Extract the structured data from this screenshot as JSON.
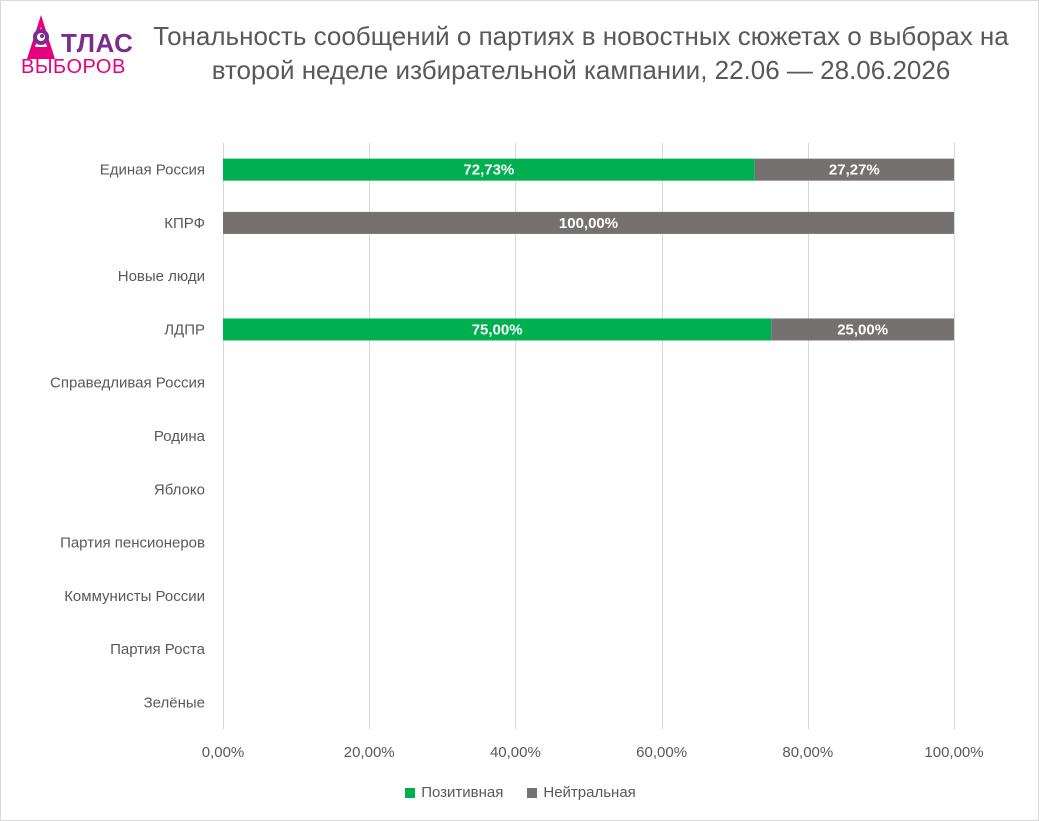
{
  "logo": {
    "top_text": "ТЛАС",
    "bottom_text": "ВЫБОРОВ",
    "icon": "rocket-icon"
  },
  "colors": {
    "positive": "#00b050",
    "neutral": "#767171",
    "grid": "#d9d9d9",
    "text": "#595959",
    "logo_purple": "#7b2d8e",
    "logo_pink": "#e6007e"
  },
  "chart_data": {
    "type": "bar",
    "orientation": "horizontal",
    "stacked": true,
    "title": "Тональность сообщений о партиях в новостных сюжетах о выборах на второй неделе избирательной кампании, 22.06 — 28.06.2026",
    "categories": [
      "Единая Россия",
      "КПРФ",
      "Новые люди",
      "ЛДПР",
      "Справедливая Россия",
      "Родина",
      "Яблоко",
      "Партия пенсионеров",
      "Коммунисты России",
      "Партия Роста",
      "Зелёные"
    ],
    "series": [
      {
        "name": "Позитивная",
        "color": "#00b050",
        "values": [
          72.73,
          0,
          0,
          75.0,
          0,
          0,
          0,
          0,
          0,
          0,
          0
        ]
      },
      {
        "name": "Нейтральная",
        "color": "#767171",
        "values": [
          27.27,
          100.0,
          0,
          25.0,
          0,
          0,
          0,
          0,
          0,
          0,
          0
        ]
      }
    ],
    "data_labels": [
      [
        "72,73%",
        "",
        "",
        "75,00%",
        "",
        "",
        "",
        "",
        "",
        "",
        ""
      ],
      [
        "27,27%",
        "100,00%",
        "",
        "25,00%",
        "",
        "",
        "",
        "",
        "",
        "",
        ""
      ]
    ],
    "xlim": [
      0,
      100
    ],
    "x_ticks": [
      0,
      20,
      40,
      60,
      80,
      100
    ],
    "x_tick_labels": [
      "0,00%",
      "20,00%",
      "40,00%",
      "60,00%",
      "80,00%",
      "100,00%"
    ],
    "grid": true,
    "legend_position": "bottom"
  }
}
